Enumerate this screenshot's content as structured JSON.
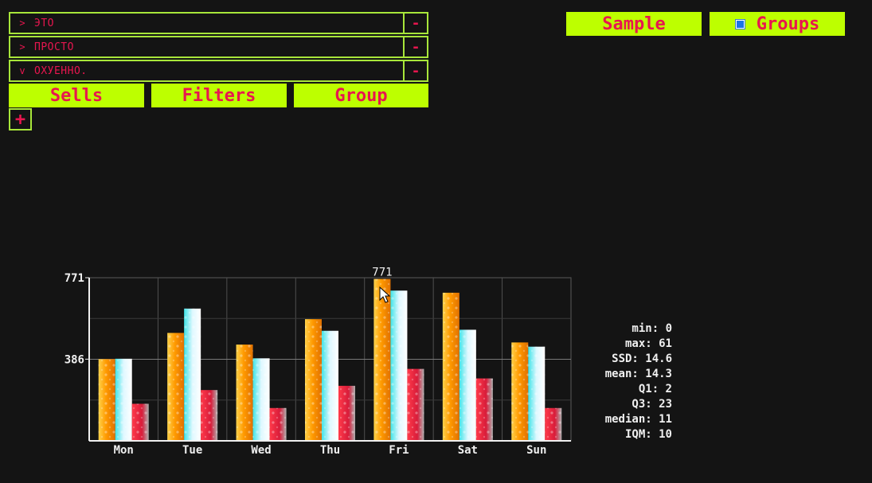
{
  "tree": [
    {
      "chevron": ">",
      "label": "ЭТО",
      "remove": "-"
    },
    {
      "chevron": ">",
      "label": "ПРОСТО",
      "remove": "-"
    },
    {
      "chevron": "v",
      "label": "ОХУЕННО.",
      "remove": "-"
    }
  ],
  "tabs": {
    "sells": "Sells",
    "filters": "Filters",
    "group": "Group"
  },
  "add_label": "+",
  "top_buttons": {
    "sample": "Sample",
    "groups": "Groups",
    "groups_checked": true
  },
  "colors": {
    "accent": "#bdff00",
    "text_accent": "#e8164f",
    "background": "#141414"
  },
  "chart_data": {
    "type": "bar",
    "categories": [
      "Mon",
      "Tue",
      "Wed",
      "Thu",
      "Fri",
      "Sat",
      "Sun"
    ],
    "series": [
      {
        "values": [
          386,
          510,
          455,
          575,
          765,
          700,
          465
        ]
      },
      {
        "values": [
          388,
          625,
          390,
          520,
          710,
          525,
          445
        ]
      },
      {
        "values": [
          175,
          240,
          155,
          260,
          340,
          295,
          155
        ]
      }
    ],
    "y_ticks": [
      "386",
      "771"
    ],
    "ylim": [
      0,
      771
    ],
    "hover_label": "771",
    "grid": true
  },
  "stats": [
    "min: 0",
    "max: 61",
    "SSD: 14.6",
    "mean: 14.3",
    "Q1: 2",
    "Q3: 23",
    "median: 11",
    "IQM: 10"
  ]
}
